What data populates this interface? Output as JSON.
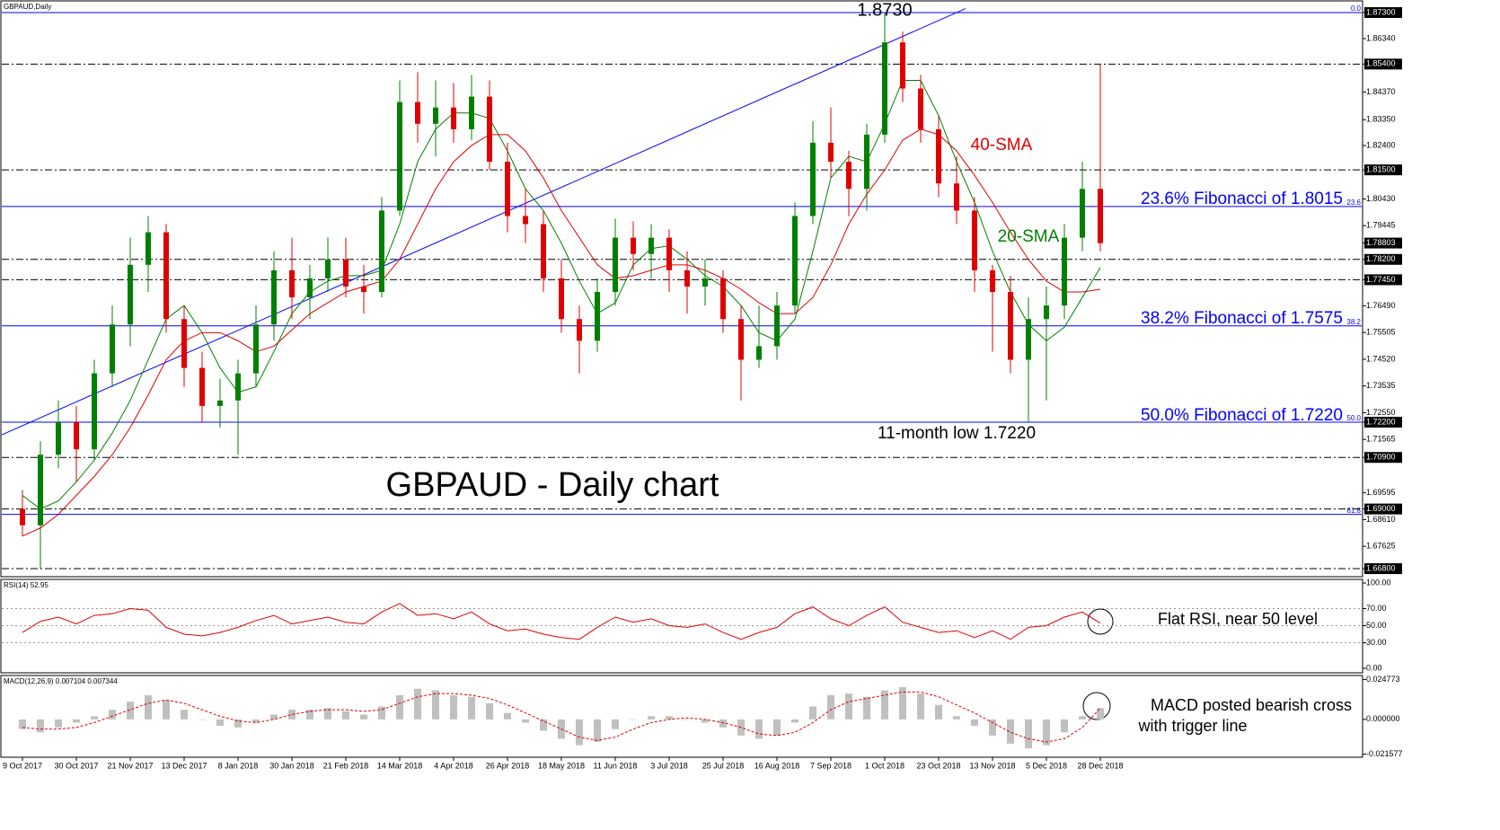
{
  "chart_data": [
    {
      "type": "candlestick",
      "title": "GBPAUD - Daily chart",
      "label": "GBPAUD,Daily",
      "categories": [
        "9 Oct 2017",
        null,
        null,
        "30 Oct 2017",
        null,
        null,
        "21 Nov 2017",
        null,
        null,
        "13 Dec 2017",
        null,
        null,
        "8 Jan 2018",
        null,
        null,
        "30 Jan 2018",
        null,
        null,
        "21 Feb 2018",
        null,
        null,
        "14 Mar 2018",
        null,
        null,
        "4 Apr 2018",
        null,
        null,
        "26 Apr 2018",
        null,
        null,
        "18 May 2018",
        null,
        null,
        "11 Jun 2018",
        null,
        null,
        "3 Jul 2018",
        null,
        null,
        "25 Jul 2018",
        null,
        null,
        "16 Aug 2018",
        null,
        null,
        "7 Sep 2018",
        null,
        null,
        "1 Oct 2018",
        null,
        null,
        "23 Oct 2018",
        null,
        null,
        "13 Nov 2018",
        null,
        null,
        "5 Dec 2018",
        null,
        null,
        "28 Dec 2018"
      ],
      "open": [
        1.69,
        1.684,
        1.71,
        1.722,
        1.712,
        1.74,
        1.758,
        1.78,
        1.792,
        1.76,
        1.742,
        1.728,
        1.73,
        1.74,
        1.758,
        1.778,
        1.768,
        1.775,
        1.782,
        1.772,
        1.77,
        1.8,
        1.84,
        1.832,
        1.838,
        1.83,
        1.842,
        1.818,
        1.798,
        1.795,
        1.775,
        1.76,
        1.752,
        1.77,
        1.79,
        1.784,
        1.79,
        1.778,
        1.772,
        1.775,
        1.76,
        1.745,
        1.75,
        1.765,
        1.798,
        1.825,
        1.818,
        1.808,
        1.828,
        1.862,
        1.845,
        1.83,
        1.81,
        1.8,
        1.778,
        1.77,
        1.745,
        1.76,
        1.765,
        1.79,
        1.808
      ],
      "high": [
        1.697,
        1.715,
        1.73,
        1.728,
        1.745,
        1.765,
        1.79,
        1.798,
        1.795,
        1.765,
        1.748,
        1.738,
        1.745,
        1.765,
        1.785,
        1.79,
        1.78,
        1.79,
        1.79,
        1.78,
        1.805,
        1.848,
        1.851,
        1.848,
        1.847,
        1.85,
        1.848,
        1.825,
        1.808,
        1.8,
        1.782,
        1.765,
        1.775,
        1.797,
        1.796,
        1.795,
        1.793,
        1.785,
        1.782,
        1.778,
        1.765,
        1.765,
        1.77,
        1.803,
        1.833,
        1.838,
        1.822,
        1.832,
        1.873,
        1.866,
        1.85,
        1.835,
        1.82,
        1.805,
        1.78,
        1.776,
        1.768,
        1.772,
        1.795,
        1.818,
        1.854
      ],
      "low": [
        1.68,
        1.668,
        1.705,
        1.7,
        1.708,
        1.735,
        1.75,
        1.77,
        1.755,
        1.735,
        1.722,
        1.72,
        1.71,
        1.735,
        1.752,
        1.76,
        1.76,
        1.77,
        1.768,
        1.762,
        1.768,
        1.798,
        1.825,
        1.82,
        1.825,
        1.826,
        1.815,
        1.792,
        1.788,
        1.77,
        1.755,
        1.74,
        1.748,
        1.765,
        1.778,
        1.775,
        1.77,
        1.762,
        1.765,
        1.755,
        1.73,
        1.742,
        1.745,
        1.762,
        1.795,
        1.812,
        1.798,
        1.8,
        1.825,
        1.84,
        1.825,
        1.805,
        1.795,
        1.77,
        1.748,
        1.74,
        1.722,
        1.73,
        1.76,
        1.785,
        1.785
      ],
      "close": [
        1.684,
        1.71,
        1.722,
        1.712,
        1.74,
        1.758,
        1.78,
        1.792,
        1.76,
        1.742,
        1.728,
        1.73,
        1.74,
        1.758,
        1.778,
        1.768,
        1.775,
        1.782,
        1.772,
        1.77,
        1.8,
        1.84,
        1.832,
        1.838,
        1.83,
        1.842,
        1.818,
        1.798,
        1.795,
        1.775,
        1.76,
        1.752,
        1.77,
        1.79,
        1.784,
        1.79,
        1.778,
        1.772,
        1.775,
        1.76,
        1.745,
        1.75,
        1.765,
        1.798,
        1.825,
        1.818,
        1.808,
        1.828,
        1.862,
        1.845,
        1.83,
        1.81,
        1.8,
        1.778,
        1.77,
        1.745,
        1.76,
        1.765,
        1.79,
        1.808,
        1.788
      ],
      "up_color": "#008000",
      "down_color": "#e00000",
      "series": [
        {
          "color": "#008000",
          "values": [
            1.695,
            1.69,
            1.693,
            1.7,
            1.708,
            1.718,
            1.73,
            1.745,
            1.76,
            1.765,
            1.755,
            1.742,
            1.733,
            1.735,
            1.748,
            1.762,
            1.77,
            1.774,
            1.776,
            1.776,
            1.778,
            1.795,
            1.818,
            1.83,
            1.836,
            1.836,
            1.834,
            1.822,
            1.808,
            1.8,
            1.788,
            1.774,
            1.762,
            1.766,
            1.78,
            1.786,
            1.787,
            1.782,
            1.776,
            1.772,
            1.765,
            1.755,
            1.752,
            1.76,
            1.785,
            1.812,
            1.82,
            1.818,
            1.832,
            1.848,
            1.848,
            1.835,
            1.818,
            1.803,
            1.785,
            1.77,
            1.758,
            1.752,
            1.757,
            1.768,
            1.779
          ]
        },
        {
          "color": "#e00000",
          "values": [
            1.68,
            1.683,
            1.688,
            1.695,
            1.702,
            1.71,
            1.72,
            1.732,
            1.745,
            1.752,
            1.755,
            1.755,
            1.752,
            1.748,
            1.75,
            1.756,
            1.762,
            1.766,
            1.77,
            1.772,
            1.774,
            1.782,
            1.795,
            1.808,
            1.818,
            1.824,
            1.828,
            1.828,
            1.822,
            1.812,
            1.8,
            1.79,
            1.78,
            1.775,
            1.776,
            1.778,
            1.78,
            1.78,
            1.778,
            1.775,
            1.771,
            1.766,
            1.762,
            1.762,
            1.768,
            1.78,
            1.795,
            1.806,
            1.815,
            1.826,
            1.83,
            1.828,
            1.822,
            1.813,
            1.803,
            1.792,
            1.782,
            1.774,
            1.77,
            1.77,
            1.771
          ]
        }
      ],
      "trendline": {
        "x": [
          0,
          52
        ],
        "values": [
          1.7207,
          1.873
        ],
        "color": "#0000ff"
      },
      "levels": [
        {
          "value": 1.873,
          "style": "solid",
          "tag": "0.0"
        },
        {
          "value": 1.8015,
          "style": "solid",
          "tag": "23.6"
        },
        {
          "value": 1.7575,
          "style": "solid",
          "tag": "38.2"
        },
        {
          "value": 1.722,
          "style": "solid",
          "tag": "50.0"
        },
        {
          "value": 1.688,
          "style": "solid",
          "tag": "61.8"
        },
        {
          "value": 1.854,
          "style": "dashdot"
        },
        {
          "value": 1.815,
          "style": "dashdot"
        },
        {
          "value": 1.782,
          "style": "dashdot"
        },
        {
          "value": 1.7745,
          "style": "dashdot"
        },
        {
          "value": 1.709,
          "style": "dashdot"
        },
        {
          "value": 1.69,
          "style": "dashdot"
        },
        {
          "value": 1.668,
          "style": "dashdot"
        }
      ],
      "annotations": [
        {
          "text": "1.8730",
          "color": "#000000"
        },
        {
          "text": "23.6% Fibonacci of 1.8015",
          "color": "#0000ff"
        },
        {
          "text": "38.2% Fibonacci of 1.7575",
          "color": "#0000ff"
        },
        {
          "text": "50.0% Fibonacci of 1.7220",
          "color": "#0000ff"
        },
        {
          "text": "11-month low 1.7220",
          "color": "#000000"
        },
        {
          "text": "40-SMA",
          "color": "#e00000"
        },
        {
          "text": "20-SMA",
          "color": "#008000"
        }
      ],
      "ylim": [
        1.6657,
        1.8763
      ],
      "yticks": [
        {
          "value": 1.873,
          "label": "1.87300",
          "highlight": true
        },
        {
          "value": 1.8634,
          "label": "1.86340"
        },
        {
          "value": 1.854,
          "label": "1.85400",
          "highlight": true
        },
        {
          "value": 1.8437,
          "label": "1.84370"
        },
        {
          "value": 1.8335,
          "label": "1.83350"
        },
        {
          "value": 1.824,
          "label": "1.82400"
        },
        {
          "value": 1.815,
          "label": "1.81500",
          "highlight": true
        },
        {
          "value": 1.8043,
          "label": "1.80430"
        },
        {
          "value": 1.79445,
          "label": "1.79445"
        },
        {
          "value": 1.78803,
          "label": "1.78803",
          "highlight": true
        },
        {
          "value": 1.782,
          "label": "1.78200",
          "highlight": true
        },
        {
          "value": 1.7745,
          "label": "1.77450",
          "highlight": true
        },
        {
          "value": 1.7649,
          "label": "1.76490"
        },
        {
          "value": 1.75505,
          "label": "1.75505"
        },
        {
          "value": 1.7452,
          "label": "1.74520"
        },
        {
          "value": 1.73535,
          "label": "1.73535"
        },
        {
          "value": 1.7255,
          "label": "1.72550"
        },
        {
          "value": 1.722,
          "label": "1.72200",
          "highlight": true
        },
        {
          "value": 1.71565,
          "label": "1.71565"
        },
        {
          "value": 1.709,
          "label": "1.70900",
          "highlight": true
        },
        {
          "value": 1.69595,
          "label": "1.69595"
        },
        {
          "value": 1.69,
          "label": "1.69000",
          "highlight": true
        },
        {
          "value": 1.6861,
          "label": "1.68610"
        },
        {
          "value": 1.67625,
          "label": "1.67625"
        },
        {
          "value": 1.668,
          "label": "1.66800",
          "highlight": true
        }
      ]
    },
    {
      "type": "line",
      "label": "RSI(14) 52.95",
      "color": "#e00000",
      "values": [
        42,
        55,
        60,
        52,
        62,
        64,
        70,
        68,
        48,
        40,
        38,
        42,
        48,
        56,
        62,
        52,
        56,
        60,
        54,
        52,
        66,
        76,
        62,
        64,
        58,
        66,
        52,
        44,
        46,
        40,
        36,
        34,
        48,
        60,
        54,
        58,
        50,
        48,
        52,
        42,
        34,
        42,
        48,
        64,
        72,
        58,
        50,
        62,
        72,
        54,
        48,
        42,
        44,
        36,
        44,
        34,
        48,
        50,
        60,
        66,
        53
      ],
      "annotations": [
        {
          "text": "Flat RSI, near 50 level",
          "color": "#000000"
        }
      ],
      "ylim": [
        0,
        100
      ],
      "yticks": [
        {
          "value": 100,
          "label": "100.00"
        },
        {
          "value": 70,
          "label": "70.00"
        },
        {
          "value": 50,
          "label": "50.00"
        },
        {
          "value": 30,
          "label": "30.00"
        },
        {
          "value": 0,
          "label": "0.00"
        }
      ],
      "levels": [
        70,
        50,
        30
      ]
    },
    {
      "type": "bar",
      "label": "MACD(12,26,9) 0.007104 0.007344",
      "series": [
        {
          "color": "#c0c0c0",
          "values": [
            -0.006,
            -0.008,
            -0.005,
            -0.002,
            0.002,
            0.006,
            0.011,
            0.015,
            0.012,
            0.006,
            0.0,
            -0.004,
            -0.005,
            -0.002,
            0.003,
            0.006,
            0.006,
            0.007,
            0.005,
            0.003,
            0.008,
            0.015,
            0.019,
            0.018,
            0.015,
            0.014,
            0.01,
            0.004,
            -0.002,
            -0.007,
            -0.012,
            -0.016,
            -0.014,
            -0.006,
            0.0,
            0.002,
            0.002,
            0.0,
            -0.002,
            -0.005,
            -0.01,
            -0.012,
            -0.01,
            -0.002,
            0.008,
            0.015,
            0.016,
            0.014,
            0.018,
            0.02,
            0.016,
            0.009,
            0.002,
            -0.004,
            -0.01,
            -0.015,
            -0.018,
            -0.016,
            -0.008,
            0.002,
            0.007
          ]
        },
        {
          "color": "#e00000",
          "values": [
            -0.005,
            -0.006,
            -0.006,
            -0.005,
            -0.002,
            0.002,
            0.006,
            0.01,
            0.012,
            0.01,
            0.006,
            0.002,
            -0.001,
            -0.002,
            0.0,
            0.003,
            0.005,
            0.006,
            0.006,
            0.005,
            0.006,
            0.01,
            0.014,
            0.016,
            0.016,
            0.015,
            0.013,
            0.009,
            0.004,
            -0.001,
            -0.006,
            -0.011,
            -0.013,
            -0.011,
            -0.006,
            -0.002,
            0.0,
            0.001,
            0.0,
            -0.002,
            -0.005,
            -0.009,
            -0.01,
            -0.008,
            -0.002,
            0.006,
            0.011,
            0.013,
            0.015,
            0.017,
            0.017,
            0.014,
            0.009,
            0.004,
            -0.002,
            -0.008,
            -0.012,
            -0.014,
            -0.012,
            -0.005,
            0.007
          ]
        }
      ],
      "annotations": [
        {
          "text": "MACD posted bearish cross",
          "color": "#000000"
        },
        {
          "text": "with trigger line",
          "color": "#000000"
        }
      ],
      "ylim": [
        -0.0218,
        0.025
      ],
      "yticks": [
        0.024773,
        {
          "value": 0,
          "label": "0.000000"
        },
        -0.021577
      ]
    }
  ]
}
